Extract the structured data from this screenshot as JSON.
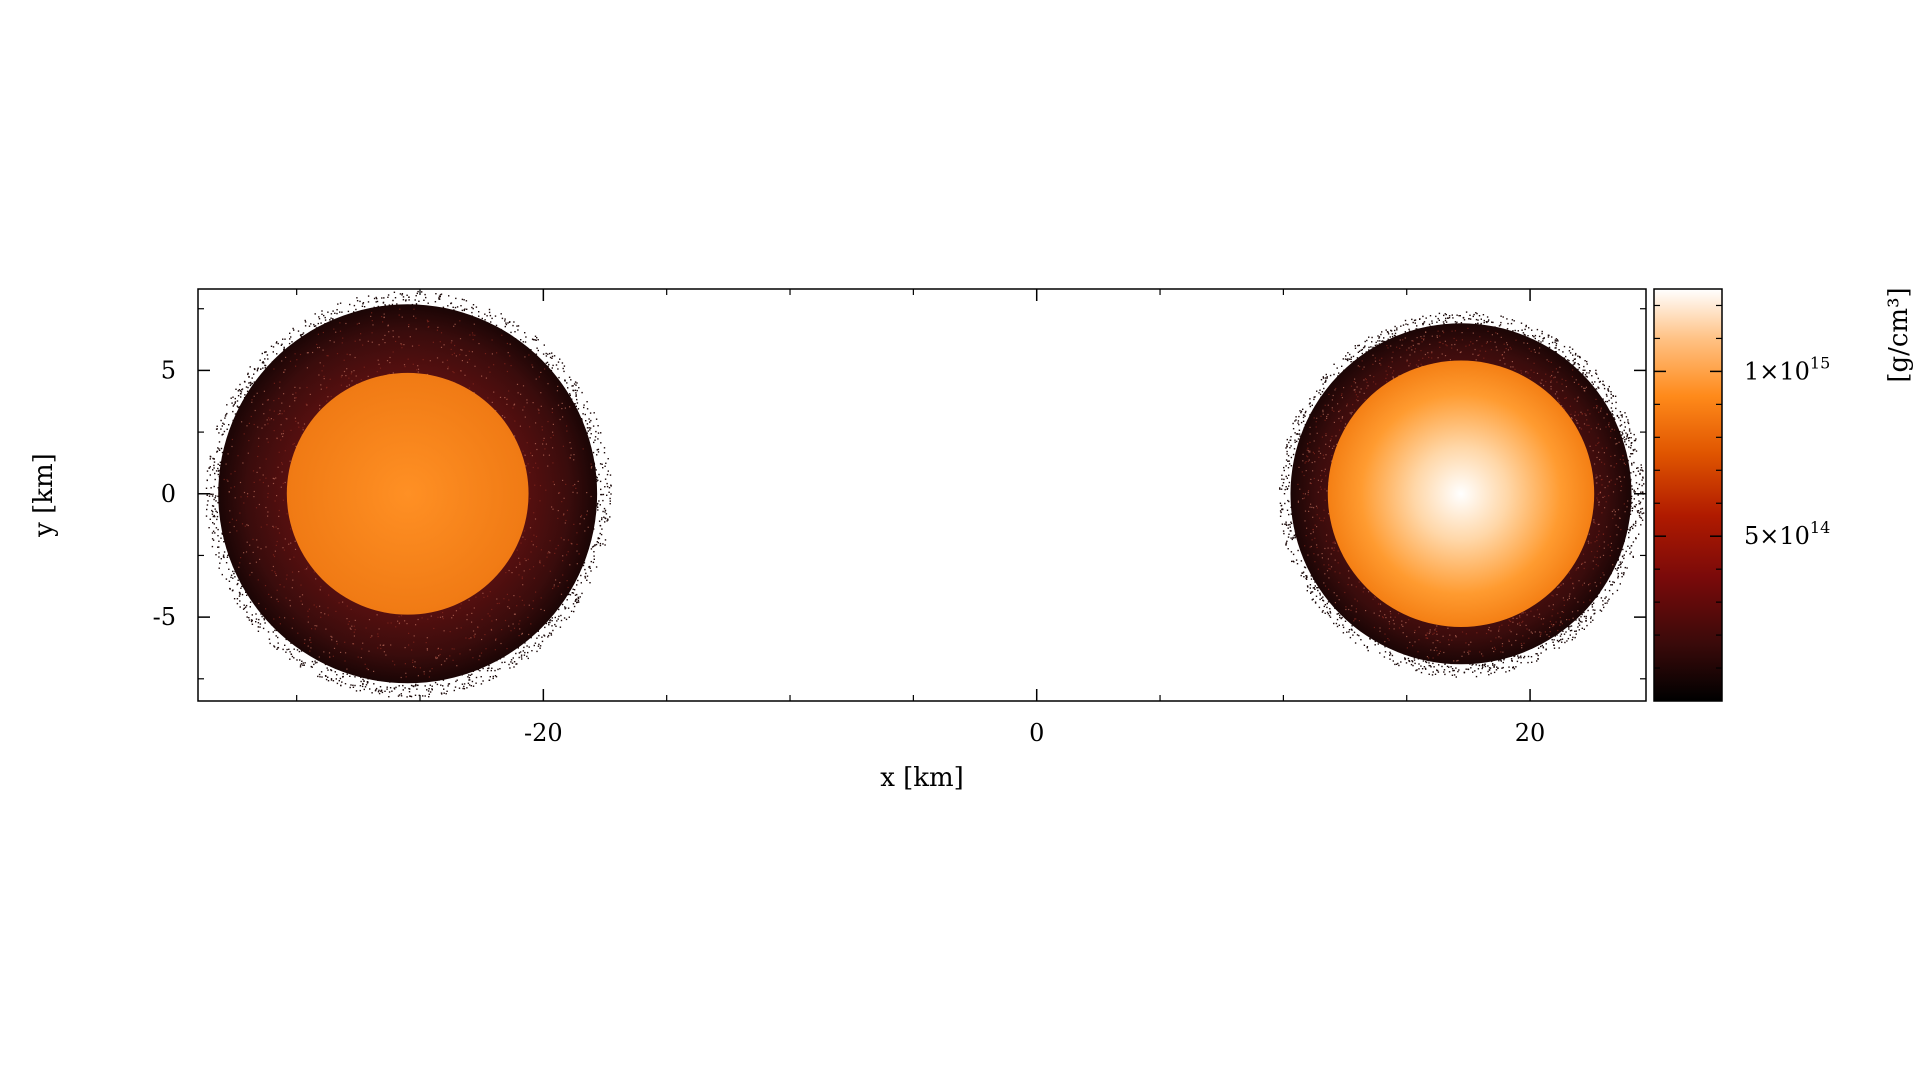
{
  "chart_data": {
    "type": "scatter",
    "title": "",
    "xlabel": "x [km]",
    "ylabel": "y [km]",
    "xlim": [
      -34,
      24.7
    ],
    "ylim": [
      -8.4,
      8.3
    ],
    "x_ticks": [
      {
        "value": -20,
        "label": "-20"
      },
      {
        "value": 0,
        "label": "0"
      },
      {
        "value": 20,
        "label": "20"
      }
    ],
    "y_ticks": [
      {
        "value": 5,
        "label": "5"
      },
      {
        "value": 0,
        "label": "0"
      },
      {
        "value": -5,
        "label": "-5"
      }
    ],
    "grid": false,
    "colorbar": {
      "label": "[g/cm³]",
      "min": 0,
      "max": 1250000000000000.0,
      "ticks": [
        {
          "value": 1000000000000000.0,
          "mantissa": "1",
          "times": "×10",
          "exponent": "15"
        },
        {
          "value": 500000000000000.0,
          "mantissa": "5",
          "times": "×10",
          "exponent": "14"
        }
      ],
      "colormap": [
        "#000000",
        "#3a0a0a",
        "#7a0a0a",
        "#b01a00",
        "#e05500",
        "#ff8a1a",
        "#ffc285",
        "#ffffff"
      ]
    },
    "stars": [
      {
        "x": -25.5,
        "y": 0,
        "radius": 8.0,
        "core_radius": 4.9,
        "core_density": 980000000000000.0,
        "envelope_density": 250000000000000.0
      },
      {
        "x": 17.2,
        "y": 0,
        "radius": 7.2,
        "core_radius": 5.4,
        "core_density": 1250000000000000.0,
        "envelope_density": 260000000000000.0
      }
    ]
  }
}
